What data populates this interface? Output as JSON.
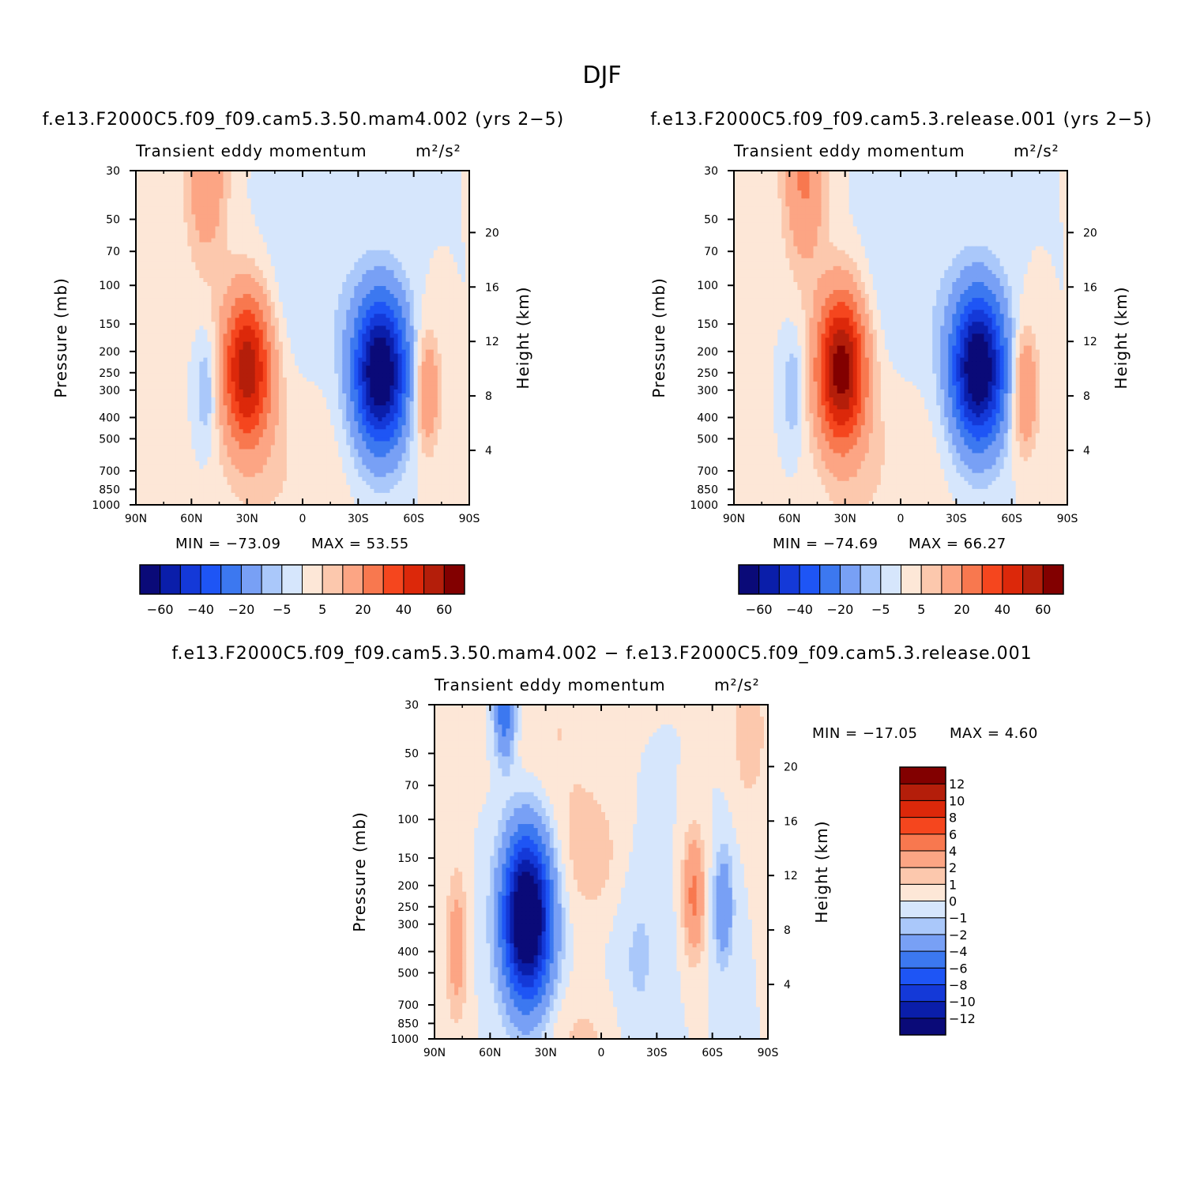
{
  "figure": {
    "title": "DJF",
    "units": "m²/s²"
  },
  "colorbar_colors": {
    "full": [
      "#0a0a78",
      "#0a1eaa",
      "#1439d8",
      "#1e55f5",
      "#3c78f0",
      "#78a0f5",
      "#aac8fa",
      "#d6e6fc",
      "#fde7d7",
      "#fcc8ad",
      "#fca584",
      "#f8784f",
      "#f5461e",
      "#dc280a",
      "#b41e0a",
      "#820000"
    ],
    "diff": [
      "#0a0a78",
      "#0a1eaa",
      "#1439d8",
      "#1e55f5",
      "#3c78f0",
      "#78a0f5",
      "#aac8fa",
      "#d6e6fc",
      "#fde7d7",
      "#fcc8ad",
      "#fca584",
      "#f8784f",
      "#f5461e",
      "#dc280a",
      "#b41e0a",
      "#820000"
    ]
  },
  "chart_data": [
    {
      "type": "contour",
      "subtitle": "f.e13.F2000C5.f09_f09.cam5.3.50.mam4.002 (yrs 2−5)",
      "title": "Transient eddy momentum",
      "units": "m²/s²",
      "ylabel": "Pressure (mb)",
      "ylabel_right": "Height (km)",
      "x_ticks": [
        "90N",
        "60N",
        "30N",
        "0",
        "30S",
        "60S",
        "90S"
      ],
      "y_ticks": [
        "30",
        "50",
        "70",
        "100",
        "150",
        "200",
        "250",
        "300",
        "400",
        "500",
        "700",
        "850",
        "1000"
      ],
      "y_ticks_right": [
        "20",
        "16",
        "12",
        "8",
        "4"
      ],
      "xlim": [
        90,
        -90
      ],
      "ylim": [
        1000,
        30
      ],
      "min_label": "MIN = −73.09",
      "max_label": "MAX = 53.55",
      "min": -73.09,
      "max": 53.55,
      "colorbar_labels": [
        "−60",
        "−40",
        "−20",
        "−5",
        "5",
        "20",
        "40",
        "60"
      ],
      "levels": [
        -70,
        -60,
        -50,
        -40,
        -30,
        -20,
        -10,
        -5,
        0,
        5,
        10,
        20,
        30,
        40,
        50,
        60,
        70
      ]
    },
    {
      "type": "contour",
      "subtitle": "f.e13.F2000C5.f09_f09.cam5.3.release.001 (yrs 2−5)",
      "title": "Transient eddy momentum",
      "units": "m²/s²",
      "ylabel": "Pressure (mb)",
      "ylabel_right": "Height (km)",
      "x_ticks": [
        "90N",
        "60N",
        "30N",
        "0",
        "30S",
        "60S",
        "90S"
      ],
      "y_ticks": [
        "30",
        "50",
        "70",
        "100",
        "150",
        "200",
        "250",
        "300",
        "400",
        "500",
        "700",
        "850",
        "1000"
      ],
      "y_ticks_right": [
        "20",
        "16",
        "12",
        "8",
        "4"
      ],
      "xlim": [
        90,
        -90
      ],
      "ylim": [
        1000,
        30
      ],
      "min_label": "MIN = −74.69",
      "max_label": "MAX = 66.27",
      "min": -74.69,
      "max": 66.27,
      "colorbar_labels": [
        "−60",
        "−40",
        "−20",
        "−5",
        "5",
        "20",
        "40",
        "60"
      ],
      "levels": [
        -70,
        -60,
        -50,
        -40,
        -30,
        -20,
        -10,
        -5,
        0,
        5,
        10,
        20,
        30,
        40,
        50,
        60,
        70
      ]
    },
    {
      "type": "contour",
      "subtitle": "f.e13.F2000C5.f09_f09.cam5.3.50.mam4.002 − f.e13.F2000C5.f09_f09.cam5.3.release.001",
      "title": "Transient eddy momentum",
      "units": "m²/s²",
      "ylabel": "Pressure (mb)",
      "ylabel_right": "Height (km)",
      "x_ticks": [
        "90N",
        "60N",
        "30N",
        "0",
        "30S",
        "60S",
        "90S"
      ],
      "y_ticks": [
        "30",
        "50",
        "70",
        "100",
        "150",
        "200",
        "250",
        "300",
        "400",
        "500",
        "700",
        "850",
        "1000"
      ],
      "y_ticks_right": [
        "20",
        "16",
        "12",
        "8",
        "4"
      ],
      "xlim": [
        90,
        -90
      ],
      "ylim": [
        1000,
        30
      ],
      "min_label": "MIN = −17.05",
      "max_label": "MAX = 4.60",
      "min": -17.05,
      "max": 4.6,
      "colorbar_labels": [
        "12",
        "10",
        "8",
        "6",
        "4",
        "2",
        "1",
        "0",
        "−1",
        "−2",
        "−4",
        "−6",
        "−8",
        "−10",
        "−12"
      ],
      "levels": [
        -14,
        -12,
        -10,
        -8,
        -6,
        -4,
        -2,
        -1,
        0,
        1,
        2,
        4,
        6,
        8,
        10,
        12,
        14
      ]
    }
  ]
}
